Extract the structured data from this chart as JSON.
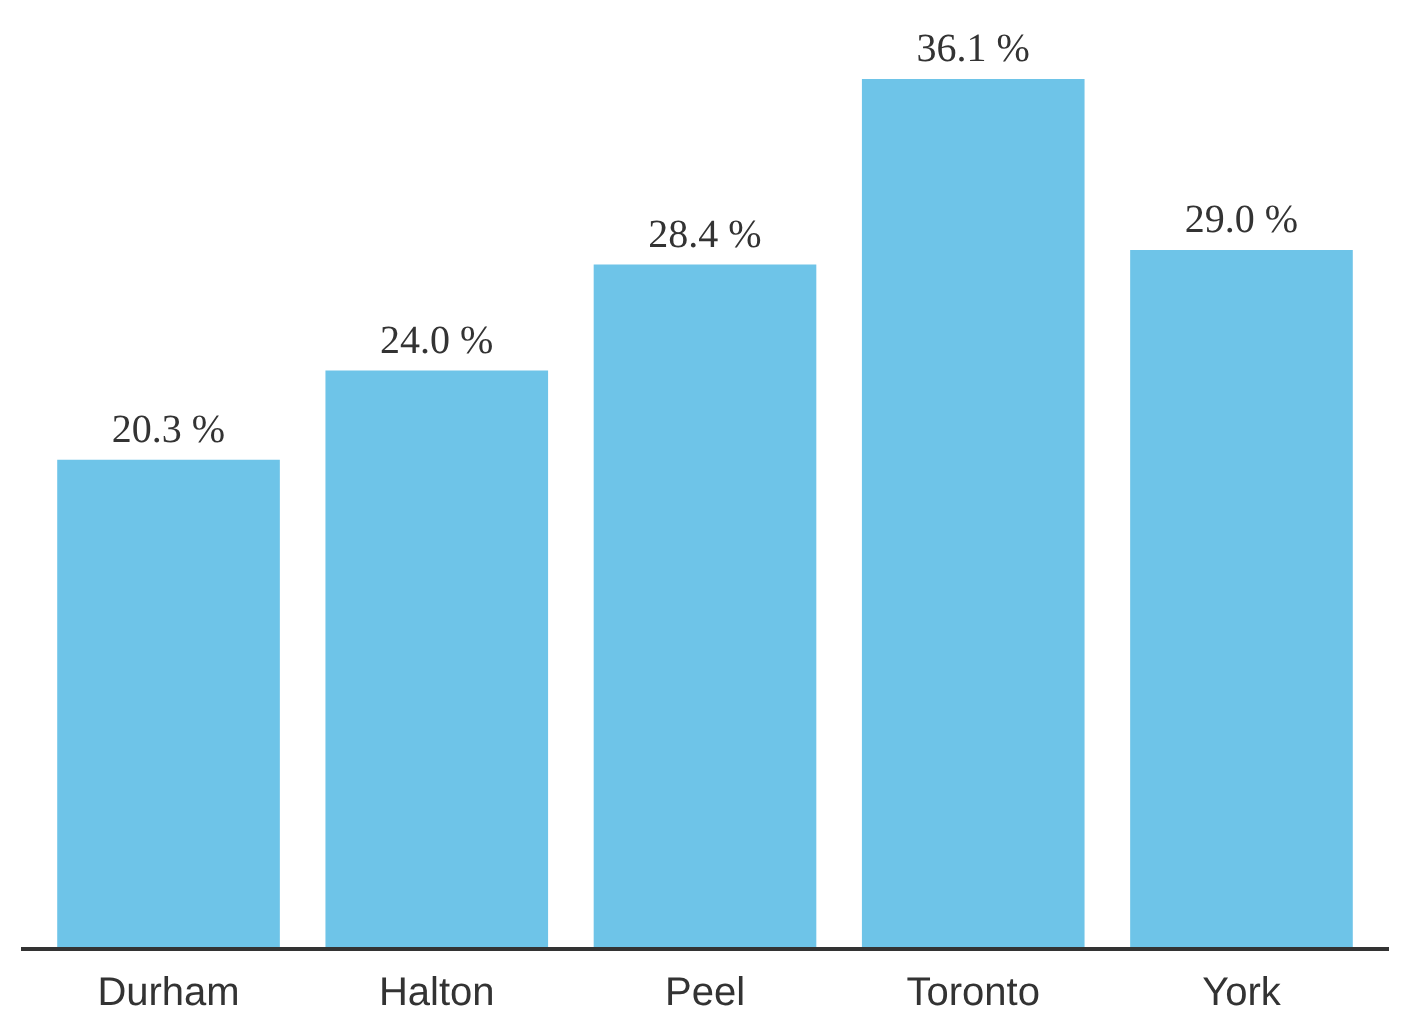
{
  "chart_data": {
    "type": "bar",
    "categories": [
      "Durham",
      "Halton",
      "Peel",
      "Toronto",
      "York"
    ],
    "values": [
      20.3,
      24.0,
      28.4,
      36.1,
      29.0
    ],
    "value_labels": [
      "20.3 %",
      "24.0 %",
      "28.4 %",
      "36.1 %",
      "29.0 %"
    ],
    "color": "#6ec4e8",
    "grid": false
  }
}
